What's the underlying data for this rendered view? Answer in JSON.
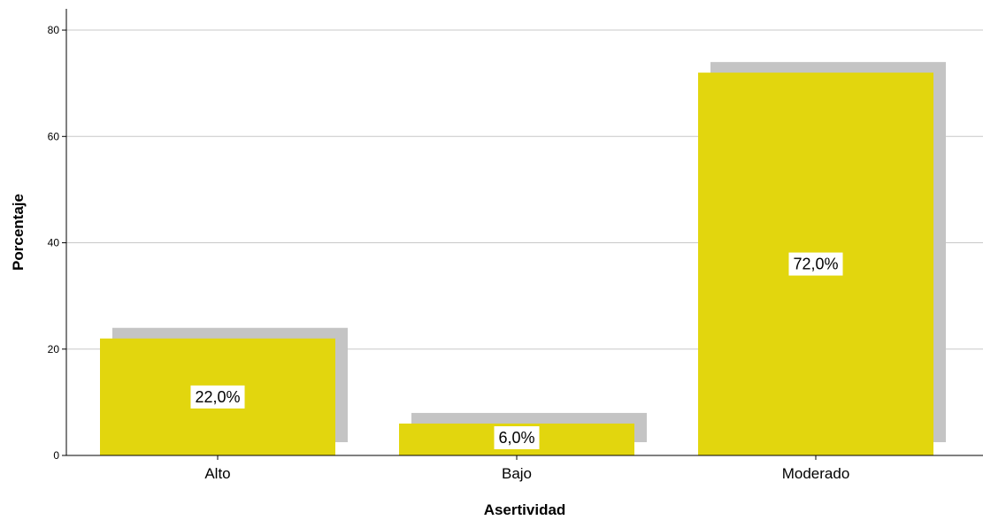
{
  "chart_data": {
    "type": "bar",
    "title": "",
    "xlabel": "Asertividad",
    "ylabel": "Porcentaje",
    "categories": [
      "Alto",
      "Bajo",
      "Moderado"
    ],
    "values": [
      22.0,
      6.0,
      72.0
    ],
    "data_labels": [
      "22,0%",
      "6,0%",
      "72,0%"
    ],
    "ylim": [
      0,
      80
    ],
    "yticks": [
      "0",
      "20",
      "40",
      "60",
      "80"
    ],
    "grid": true,
    "legend": "none",
    "bar_color": "#e2d60e",
    "shadow_color": "#c4c4c4",
    "gridline_color": "#c8c8c8"
  }
}
